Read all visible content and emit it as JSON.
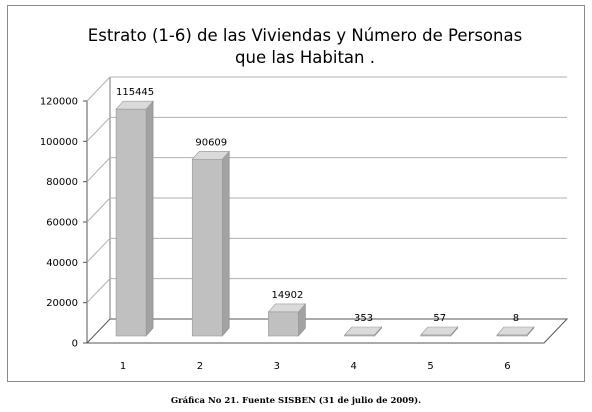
{
  "chart_data": {
    "type": "bar",
    "title_line1": "Estrato (1-6) de las Viviendas y Número  de Personas",
    "title_line2": "que las Habitan .",
    "categories": [
      "1",
      "2",
      "3",
      "4",
      "5",
      "6"
    ],
    "values": [
      115445,
      90609,
      14902,
      353,
      57,
      8
    ],
    "data_labels": [
      "115445",
      "90609",
      "14902",
      "353",
      "57",
      "8"
    ],
    "yticks": [
      0,
      20000,
      40000,
      60000,
      80000,
      100000,
      120000
    ],
    "ylim": [
      0,
      120000
    ],
    "grid": true,
    "style": "3d-column",
    "colors": {
      "bar_front": "#c0c0c0",
      "bar_side": "#a2a2a2",
      "bar_top": "#dadada",
      "grid": "#b0b0b0"
    }
  },
  "caption": "Gráfica No 21. Fuente SISBEN (31 de julio de 2009)."
}
